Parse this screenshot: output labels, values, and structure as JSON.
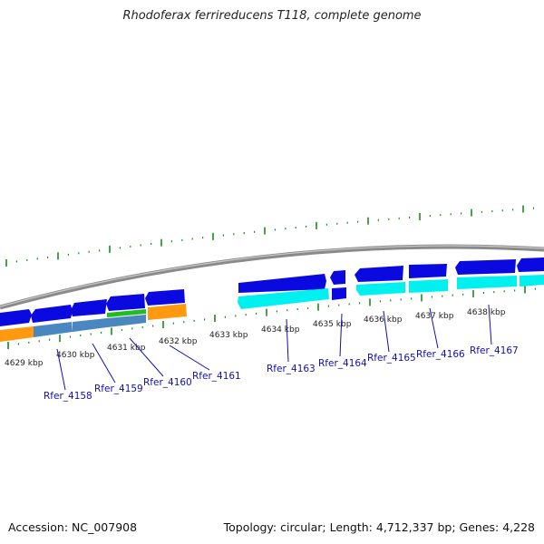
{
  "header": {
    "title": "Rhodoferax ferrireducens T118, complete genome"
  },
  "footer": {
    "accession": "Accession: NC_007908",
    "summary": "Topology: circular; Length: 4,712,337 bp; Genes: 4,228"
  },
  "colors": {
    "backbone": "#8a8a8a",
    "tick": "#1a8a1a",
    "gene_blue": "#0a0ae0",
    "gene_cyan": "#00f0f0",
    "gene_orange": "#ff9a10",
    "gene_steel": "#4a86c0",
    "gene_green": "#22bb22",
    "label": "#1010b0"
  },
  "scale_labels": [
    "4629 kbp",
    "4630 kbp",
    "4631 kbp",
    "4632 kbp",
    "4633 kbp",
    "4634 kbp",
    "4635 kbp",
    "4636 kbp",
    "4637 kbp",
    "4638 kbp"
  ],
  "gene_labels": [
    "Rfer_4158",
    "Rfer_4159",
    "Rfer_4160",
    "Rfer_4161",
    "Rfer_4163",
    "Rfer_4164",
    "Rfer_4165",
    "Rfer_4166",
    "Rfer_4167"
  ]
}
